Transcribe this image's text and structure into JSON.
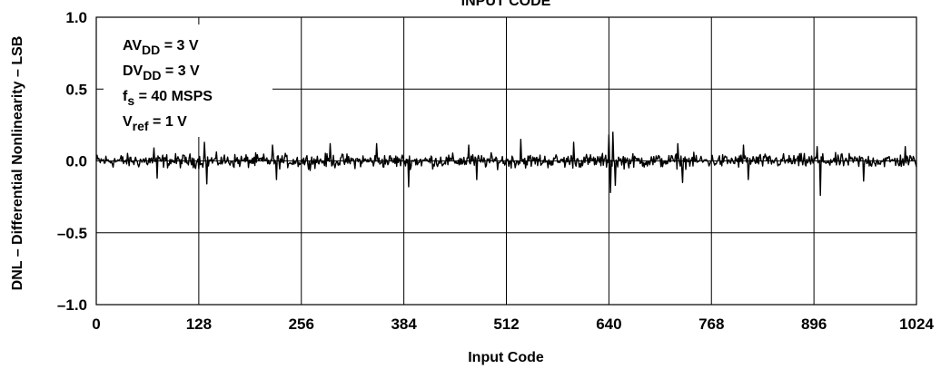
{
  "chart_data": {
    "type": "line",
    "title": "INPUT CODE",
    "xlabel": "Input Code",
    "ylabel": "DNL – Differential Nonlinearity – LSB",
    "xlim": [
      0,
      1024
    ],
    "ylim": [
      -1.0,
      1.0
    ],
    "x_ticks": [
      "0",
      "128",
      "256",
      "384",
      "512",
      "640",
      "768",
      "896",
      "1024"
    ],
    "y_ticks": [
      "1.0",
      "0.5",
      "0.0",
      "–0.5",
      "–1.0"
    ],
    "grid": true,
    "legend": "none",
    "annotations": [
      {
        "main": "AV",
        "sub": "DD",
        "rest": " = 3 V"
      },
      {
        "main": "DV",
        "sub": "DD",
        "rest": " = 3 V"
      },
      {
        "main": "f",
        "sub": "s",
        "rest": " = 40 MSPS"
      },
      {
        "main": "V",
        "sub": "ref",
        "rest": " = 1 V"
      }
    ],
    "series": [
      {
        "color": "#000000",
        "x_start": 0,
        "x_step": 1,
        "noise_amplitude": 0.07,
        "spikes": [
          {
            "x": 72,
            "y": 0.09
          },
          {
            "x": 76,
            "y": -0.12
          },
          {
            "x": 135,
            "y": 0.13
          },
          {
            "x": 138,
            "y": -0.16
          },
          {
            "x": 220,
            "y": 0.11
          },
          {
            "x": 225,
            "y": -0.13
          },
          {
            "x": 292,
            "y": 0.12
          },
          {
            "x": 350,
            "y": 0.12
          },
          {
            "x": 390,
            "y": -0.18
          },
          {
            "x": 465,
            "y": 0.11
          },
          {
            "x": 475,
            "y": -0.13
          },
          {
            "x": 530,
            "y": 0.15
          },
          {
            "x": 596,
            "y": 0.13
          },
          {
            "x": 640,
            "y": 0.18
          },
          {
            "x": 642,
            "y": -0.22
          },
          {
            "x": 645,
            "y": 0.2
          },
          {
            "x": 648,
            "y": -0.17
          },
          {
            "x": 726,
            "y": 0.12
          },
          {
            "x": 732,
            "y": -0.15
          },
          {
            "x": 808,
            "y": 0.11
          },
          {
            "x": 814,
            "y": -0.13
          },
          {
            "x": 900,
            "y": 0.1
          },
          {
            "x": 904,
            "y": -0.24
          },
          {
            "x": 958,
            "y": -0.14
          },
          {
            "x": 1010,
            "y": 0.1
          }
        ]
      }
    ]
  }
}
